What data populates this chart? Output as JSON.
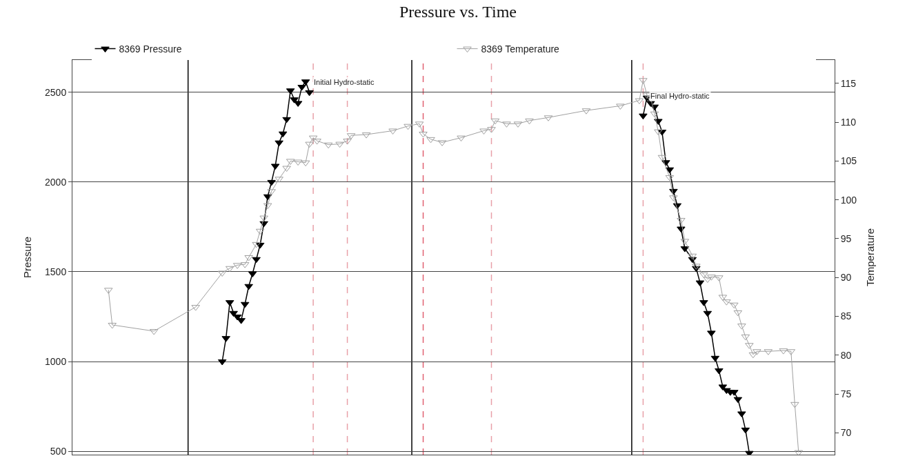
{
  "chart_data": {
    "type": "line",
    "title": "Pressure vs. Time",
    "ylabel": "Pressure",
    "y2label": "Temperature",
    "categories": [
      null,
      null,
      null,
      null,
      null,
      null,
      null,
      null,
      null,
      null,
      null,
      null,
      null,
      null,
      null,
      null,
      null,
      null,
      null,
      null,
      null,
      null,
      null,
      null,
      null,
      null,
      null,
      null,
      null,
      null,
      null,
      null,
      null,
      null,
      null,
      null,
      null,
      null,
      null,
      null,
      null,
      null,
      null,
      null,
      null,
      null,
      null,
      null,
      null,
      null,
      null,
      null,
      null,
      null,
      null,
      null,
      null,
      null,
      null,
      null,
      null,
      null,
      null,
      null,
      null,
      null,
      null,
      null,
      null,
      null,
      null,
      null,
      null,
      null,
      null,
      null,
      null,
      null,
      null,
      null,
      null,
      null,
      null,
      null,
      null,
      null,
      null,
      null,
      null,
      null,
      null,
      null,
      null,
      null,
      null,
      null,
      null,
      null,
      null,
      null,
      null,
      null,
      null,
      null,
      null,
      null,
      null,
      null,
      null,
      null,
      null,
      null,
      null,
      null,
      null,
      null,
      null,
      null,
      null,
      null,
      null,
      null,
      null,
      null,
      null,
      null,
      null,
      null,
      null,
      null,
      null,
      null,
      null,
      null,
      null,
      null,
      null,
      null,
      null,
      null,
      null,
      null,
      null,
      null,
      null,
      null,
      null,
      null,
      null,
      null,
      null,
      null,
      null,
      null,
      null,
      null,
      null,
      null,
      null,
      null,
      null,
      null,
      null,
      null,
      null,
      null,
      null,
      null,
      null,
      null,
      null,
      null,
      null,
      null,
      null,
      null,
      null,
      null,
      null,
      null,
      null,
      null,
      null,
      null,
      null,
      null,
      null,
      null,
      null,
      null,
      null,
      null,
      null,
      null,
      null,
      null,
      null,
      null,
      null,
      null,
      null
    ],
    "ylim": [
      481,
      2680
    ],
    "yticks": [
      500,
      1000,
      1500,
      2000,
      2500
    ],
    "y2lim": [
      67.2,
      118.0
    ],
    "y2ticks": [
      70,
      75,
      80,
      85,
      90,
      95,
      100,
      105,
      110,
      115
    ],
    "tick_labels": "y",
    "grid": "y",
    "legend": "top",
    "marker": "triangle",
    "series": [
      {
        "name": "8369 Pressure",
        "color": "#000000",
        "values": [
          null,
          null,
          null,
          null,
          null,
          null,
          null,
          null,
          null,
          null,
          null,
          null,
          null,
          null,
          null,
          null,
          null,
          null,
          null,
          null,
          null,
          null,
          null,
          null,
          null,
          null,
          null,
          null,
          null,
          null,
          null,
          null,
          null,
          null,
          null,
          null,
          null,
          null,
          null,
          1000,
          1130,
          1330,
          1270,
          1250,
          1230,
          1320,
          1420,
          1490,
          1570,
          1650,
          1770,
          1920,
          2000,
          2090,
          2220,
          2270,
          2350,
          2510,
          2460,
          2440,
          2530,
          2560,
          2500,
          null,
          null,
          null,
          null,
          null,
          null,
          null,
          null,
          null,
          null,
          null,
          null,
          null,
          null,
          null,
          null,
          null,
          null,
          null,
          null,
          null,
          null,
          null,
          null,
          null,
          null,
          null,
          null,
          null,
          null,
          null,
          null,
          null,
          null,
          null,
          null,
          null,
          null,
          null,
          null,
          null,
          null,
          null,
          null,
          null,
          null,
          null,
          null,
          null,
          null,
          null,
          null,
          null,
          null,
          null,
          null,
          null,
          null,
          null,
          null,
          null,
          null,
          null,
          null,
          null,
          null,
          null,
          null,
          null,
          null,
          null,
          null,
          null,
          null,
          null,
          null,
          null,
          null,
          null,
          null,
          null,
          null,
          null,
          null,
          null,
          null,
          null,
          null,
          null,
          null,
          null,
          null,
          null,
          null,
          null,
          null,
          null,
          null,
          null,
          null,
          null,
          null,
          null,
          null,
          null,
          null,
          null,
          null,
          null,
          null,
          null,
          null,
          null,
          null,
          null,
          null,
          null,
          null,
          null,
          null,
          null,
          null,
          null,
          null,
          null,
          null,
          null,
          null,
          null,
          null,
          null,
          null,
          null,
          null,
          null,
          null,
          null,
          null
        ]
      },
      {
        "color": "#000000",
        "values": [
          null,
          null,
          null,
          null,
          null,
          null,
          null,
          null,
          null,
          null,
          null,
          null,
          null,
          null,
          null,
          null,
          null,
          null,
          null,
          null,
          null,
          null,
          null,
          null,
          null,
          null,
          null,
          null,
          null,
          null,
          null,
          null,
          null,
          null,
          null,
          null,
          null,
          null,
          null,
          null,
          null,
          null,
          null,
          null,
          null,
          null,
          null,
          null,
          null,
          null,
          null,
          null,
          null,
          null,
          null,
          null,
          null,
          null,
          null,
          null,
          null,
          null,
          null,
          null,
          null,
          null,
          null,
          null,
          null,
          null,
          null,
          null,
          null,
          null,
          null,
          null,
          null,
          null,
          null,
          null,
          null,
          null,
          null,
          null,
          null,
          null,
          null,
          null,
          null,
          null,
          null,
          null,
          null,
          null,
          null,
          null,
          null,
          null,
          null,
          null,
          null,
          null,
          null,
          null,
          null,
          null,
          null,
          null,
          null,
          null,
          null,
          null,
          null,
          null,
          null,
          null,
          null,
          null,
          null,
          null,
          null,
          null,
          null,
          null,
          null,
          null,
          null,
          null,
          null,
          null,
          null,
          null,
          null,
          null,
          null,
          null,
          null,
          null,
          null,
          null,
          null,
          null,
          null,
          null,
          null,
          null,
          null,
          null,
          null,
          null,
          2370,
          2470,
          2440,
          2420,
          2340,
          2280,
          2110,
          2070,
          1950,
          1870,
          1740,
          1630,
          null,
          1570,
          1520,
          1440,
          1330,
          1270,
          1160,
          1020,
          950,
          860,
          840,
          830,
          830,
          790,
          710,
          620,
          490,
          null,
          null,
          null,
          null,
          null,
          null,
          null,
          null,
          null,
          null,
          null,
          null,
          null,
          null,
          null,
          null,
          null,
          null,
          null,
          null,
          null,
          null
        ]
      },
      {
        "name": "8369 Temperature",
        "color": "#a0a0a0",
        "axis": "y2",
        "values": [
          null,
          null,
          null,
          null,
          null,
          null,
          null,
          null,
          null,
          88.4,
          83.9,
          null,
          null,
          null,
          null,
          null,
          null,
          null,
          null,
          null,
          null,
          83.1,
          null,
          null,
          null,
          null,
          null,
          null,
          null,
          null,
          null,
          null,
          86.2,
          null,
          null,
          null,
          null,
          null,
          null,
          90.6,
          null,
          91.2,
          null,
          91.6,
          null,
          91.7,
          92.6,
          null,
          94.3,
          96.0,
          97.7,
          99.3,
          101.1,
          null,
          102.7,
          null,
          104.1,
          105.0,
          null,
          104.9,
          null,
          104.8,
          107.2,
          108.0,
          107.6,
          null,
          null,
          107.1,
          null,
          null,
          107.2,
          null,
          107.6,
          108.3,
          null,
          null,
          null,
          108.4,
          null,
          null,
          null,
          null,
          null,
          null,
          108.9,
          null,
          null,
          null,
          109.5,
          null,
          null,
          109.8,
          108.5,
          null,
          107.8,
          null,
          null,
          107.4,
          null,
          null,
          null,
          null,
          108.0,
          null,
          null,
          null,
          null,
          null,
          108.9,
          null,
          109.1,
          110.2,
          null,
          null,
          109.8,
          null,
          null,
          109.8,
          null,
          null,
          110.2,
          null,
          null,
          null,
          null,
          110.6,
          null,
          null,
          null,
          null,
          null,
          null,
          null,
          null,
          null,
          111.5,
          null,
          null,
          null,
          null,
          null,
          null,
          null,
          null,
          112.1,
          null,
          null,
          null,
          null,
          112.8,
          115.4,
          113.5,
          113.1,
          111.1,
          108.8,
          105.5,
          null,
          102.9,
          100.3,
          null,
          97.4,
          94.7,
          null,
          92.8,
          91.5,
          null,
          90.4,
          89.8,
          90.1,
          null,
          90.0,
          87.5,
          86.9,
          null,
          86.5,
          85.5,
          83.8,
          82.4,
          81.3,
          80.1,
          80.5,
          null,
          null,
          80.5,
          null,
          null,
          null,
          80.6,
          null,
          80.5,
          73.7,
          67.5,
          null,
          null,
          null,
          null,
          null,
          null,
          null,
          null,
          null
        ]
      }
    ],
    "annotations": [
      "Initial Hydro-static",
      "Final Hydro-static"
    ]
  }
}
